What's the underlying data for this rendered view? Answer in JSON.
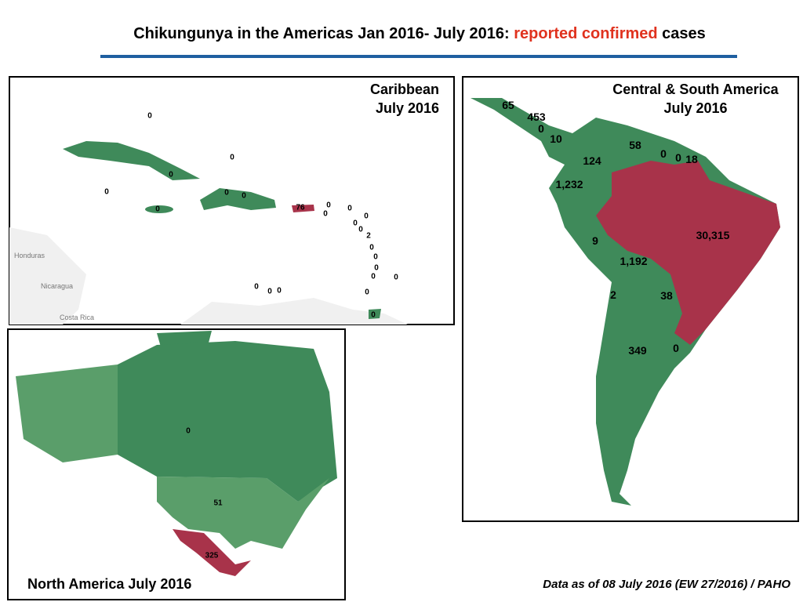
{
  "title": {
    "text": "Chikungunya in the Americas Jan 2016- July 2016:",
    "highlight": "reported confirmed",
    "suffix": "cases"
  },
  "caribbean": {
    "title": [
      "Caribbean",
      "July 2016"
    ],
    "place_names": [
      "Honduras",
      "Nicaragua",
      "Costa Rica"
    ],
    "case_labels": [
      "0",
      "0",
      "0",
      "0",
      "0",
      "0",
      "0",
      "76",
      "0",
      "0",
      "0",
      "0",
      "0",
      "0",
      "2",
      "0",
      "0",
      "0",
      "0",
      "0",
      "0",
      "0",
      "0",
      "0",
      "0"
    ]
  },
  "central_south_america": {
    "title": [
      "Central & South America",
      "July 2016"
    ],
    "case_labels": [
      "65",
      "453",
      "0",
      "10",
      "58",
      "0",
      "0",
      "18",
      "124",
      "1,232",
      "9",
      "30,315",
      "1,192",
      "2",
      "38",
      "349",
      "0"
    ]
  },
  "north_america": {
    "title": "North America July 2016",
    "case_labels": [
      "0",
      "51",
      "325"
    ]
  },
  "footer": "Data as of 08 July 2016 (EW 27/2016) / PAHO"
}
